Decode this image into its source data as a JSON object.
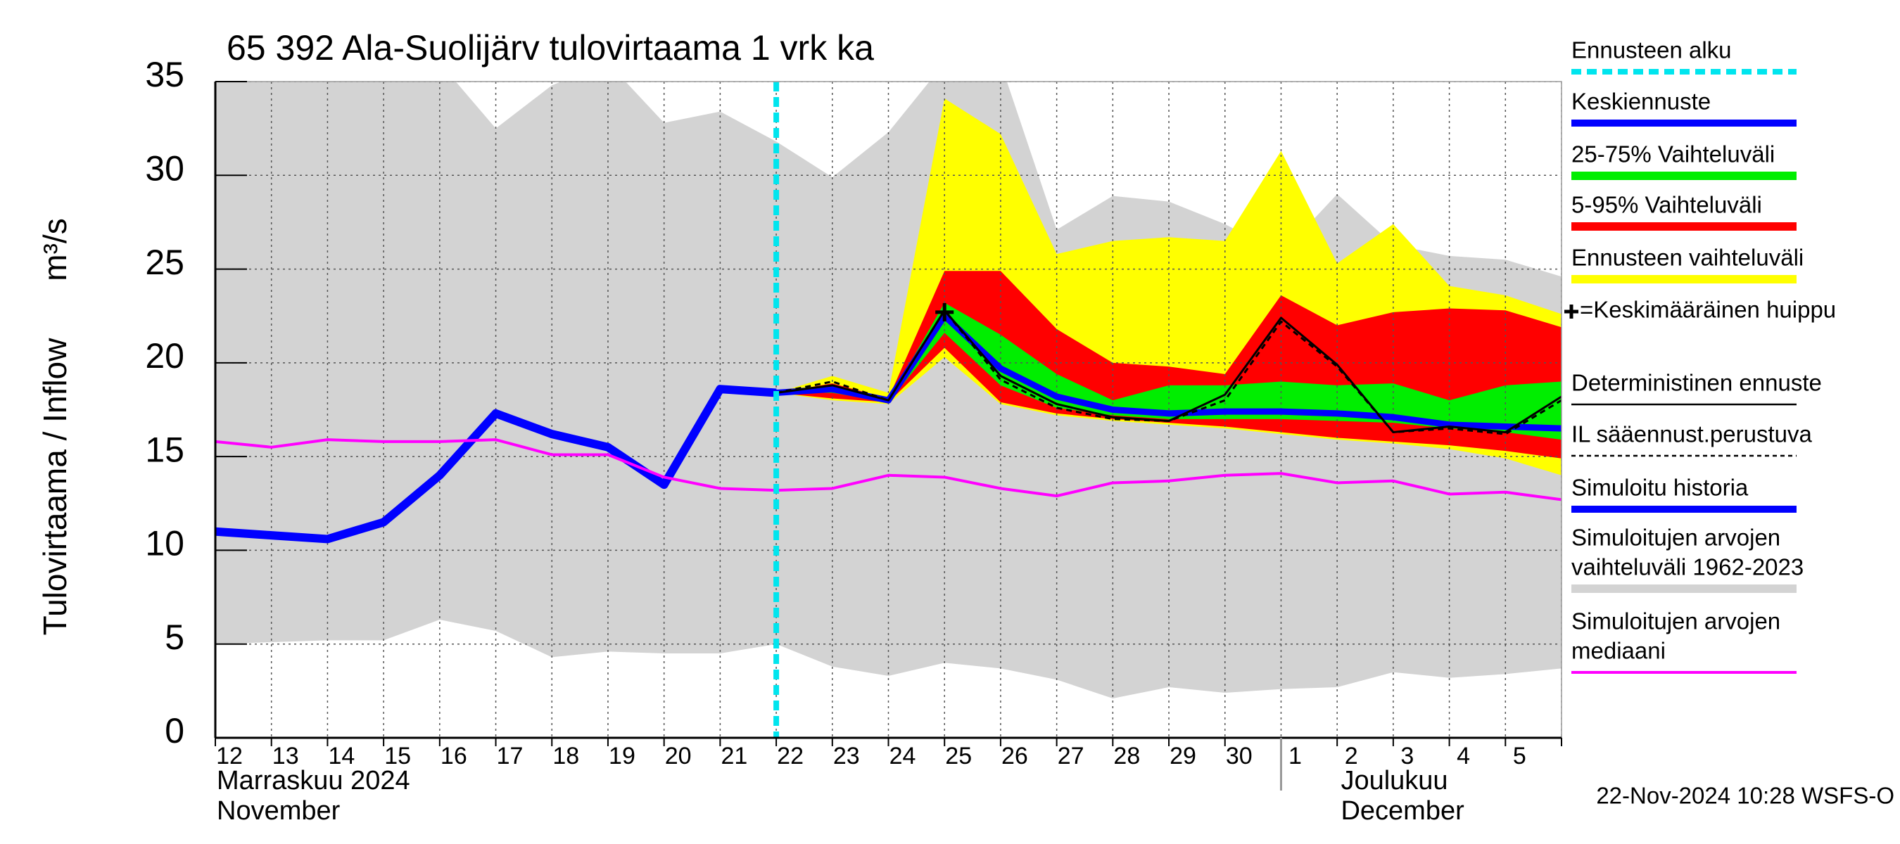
{
  "chart_data": {
    "type": "hydrograph",
    "title": "65 392 Ala-Suolijärv tulovirtaama 1 vrk ka",
    "ylabel": "Tulovirtaama / Inflow",
    "yunit": "m³/s",
    "categories": [
      "12",
      "13",
      "14",
      "15",
      "16",
      "17",
      "18",
      "19",
      "20",
      "21",
      "22",
      "23",
      "24",
      "25",
      "26",
      "27",
      "28",
      "29",
      "30",
      "1",
      "2",
      "3",
      "4",
      "5",
      null
    ],
    "months": [
      {
        "start": "12",
        "lines": [
          "Marraskuu 2024",
          "November"
        ]
      },
      {
        "start": "1",
        "lines": [
          "Joulukuu",
          "December"
        ]
      }
    ],
    "ylim": [
      0,
      35
    ],
    "yticks": [
      0,
      5,
      10,
      15,
      20,
      25,
      30,
      35
    ],
    "grid": true,
    "forecast_start": {
      "name": "Ennusteen alku",
      "category": "22",
      "color": "#00e5ee"
    },
    "peak": {
      "name": "=Keskimääräinen huippu",
      "category": "25",
      "value": 22.7
    },
    "series": [
      {
        "name": "Keskiennuste",
        "kind": "line",
        "color": "#0000ff",
        "width": 9,
        "values": [
          null,
          null,
          null,
          null,
          null,
          null,
          null,
          null,
          null,
          null,
          18.4,
          18.6,
          18.0,
          22.5,
          19.7,
          18.2,
          17.5,
          17.3,
          17.4,
          17.4,
          17.3,
          17.1,
          16.7,
          16.6,
          16.5
        ]
      },
      {
        "name": "25-75% Vaihteluväli",
        "kind": "band",
        "color": "#00ee00",
        "lower": [
          null,
          null,
          null,
          null,
          null,
          null,
          null,
          null,
          null,
          null,
          18.4,
          18.4,
          17.9,
          21.6,
          18.8,
          17.6,
          17.2,
          17.0,
          17.0,
          17.0,
          16.9,
          16.8,
          16.5,
          16.3,
          15.9
        ],
        "upper": [
          null,
          null,
          null,
          null,
          null,
          null,
          null,
          null,
          null,
          null,
          18.4,
          18.7,
          18.0,
          23.2,
          21.5,
          19.4,
          18.0,
          18.8,
          18.8,
          19.0,
          18.8,
          18.9,
          18.0,
          18.8,
          19.0
        ]
      },
      {
        "name": "5-95% Vaihteluväli",
        "kind": "band",
        "color": "#ff0000",
        "lower": [
          null,
          null,
          null,
          null,
          null,
          null,
          null,
          null,
          null,
          null,
          18.4,
          18.1,
          17.9,
          20.8,
          17.9,
          17.3,
          17.0,
          16.8,
          16.6,
          16.3,
          16.0,
          15.8,
          15.6,
          15.3,
          14.9
        ],
        "upper": [
          null,
          null,
          null,
          null,
          null,
          null,
          null,
          null,
          null,
          null,
          18.4,
          18.9,
          18.1,
          24.9,
          24.9,
          21.8,
          20.0,
          19.8,
          19.4,
          23.6,
          22.0,
          22.7,
          22.9,
          22.8,
          21.9
        ]
      },
      {
        "name": "Ennusteen vaihteluväli",
        "kind": "band",
        "color": "#ffff00",
        "lower": [
          null,
          null,
          null,
          null,
          null,
          null,
          null,
          null,
          null,
          null,
          18.4,
          18.0,
          17.8,
          20.3,
          17.8,
          17.2,
          16.9,
          16.7,
          16.5,
          16.2,
          15.9,
          15.7,
          15.4,
          14.9,
          14.0
        ],
        "upper": [
          null,
          null,
          null,
          null,
          null,
          null,
          null,
          null,
          null,
          null,
          18.4,
          19.3,
          18.4,
          34.1,
          32.2,
          25.8,
          26.5,
          26.7,
          26.5,
          31.3,
          25.3,
          27.4,
          24.1,
          23.6,
          22.6
        ]
      },
      {
        "name": "Deterministinen ennuste",
        "kind": "line",
        "color": "#000000",
        "width": 3,
        "values": [
          null,
          null,
          null,
          null,
          null,
          null,
          null,
          null,
          null,
          null,
          18.4,
          18.8,
          18.0,
          22.8,
          19.3,
          17.8,
          17.1,
          16.9,
          18.3,
          22.4,
          19.9,
          16.3,
          16.6,
          16.3,
          18.2
        ]
      },
      {
        "name": "IL sääennust.perustuva",
        "kind": "line",
        "color": "#000000",
        "width": 3,
        "dashed": true,
        "values": [
          null,
          null,
          null,
          null,
          null,
          null,
          null,
          null,
          null,
          null,
          18.4,
          19.0,
          18.0,
          22.8,
          19.1,
          17.6,
          17.0,
          16.9,
          18.0,
          22.2,
          19.8,
          16.3,
          16.5,
          16.2,
          18.0
        ]
      },
      {
        "name": "Simuloitu historia",
        "kind": "line",
        "color": "#0000ff",
        "width": 12,
        "values": [
          11.0,
          10.8,
          10.6,
          11.5,
          14.0,
          17.3,
          16.2,
          15.5,
          13.5,
          18.6,
          18.4,
          null,
          null,
          null,
          null,
          null,
          null,
          null,
          null,
          null,
          null,
          null,
          null,
          null,
          null
        ]
      },
      {
        "name": [
          "Simuloitujen arvojen",
          "vaihteluväli 1962-2023"
        ],
        "kind": "band",
        "color": "#d3d3d3",
        "lower": [
          5.0,
          5.1,
          5.2,
          5.2,
          6.3,
          5.7,
          4.3,
          4.6,
          4.5,
          4.5,
          5.0,
          3.8,
          3.3,
          4.0,
          3.7,
          3.1,
          2.1,
          2.7,
          2.4,
          2.6,
          2.7,
          3.5,
          3.2,
          3.4,
          3.7
        ],
        "upper": [
          35,
          35,
          35,
          35,
          36,
          32.5,
          34.8,
          36,
          32.8,
          33.4,
          31.8,
          29.9,
          32.3,
          36,
          36,
          27.1,
          28.9,
          28.6,
          27.4,
          25.8,
          29.0,
          26.3,
          25.7,
          25.5,
          24.6
        ]
      },
      {
        "name": [
          "Simuloitujen arvojen",
          "mediaani"
        ],
        "kind": "line",
        "color": "#ff00ff",
        "width": 4,
        "values": [
          15.8,
          15.5,
          15.9,
          15.8,
          15.8,
          15.9,
          15.1,
          15.1,
          13.9,
          13.3,
          13.2,
          13.3,
          14.0,
          13.9,
          13.3,
          12.9,
          13.6,
          13.7,
          14.0,
          14.1,
          13.6,
          13.7,
          13.0,
          13.1,
          12.7
        ]
      }
    ],
    "timestamp": "22-Nov-2024 10:28 WSFS-O"
  }
}
